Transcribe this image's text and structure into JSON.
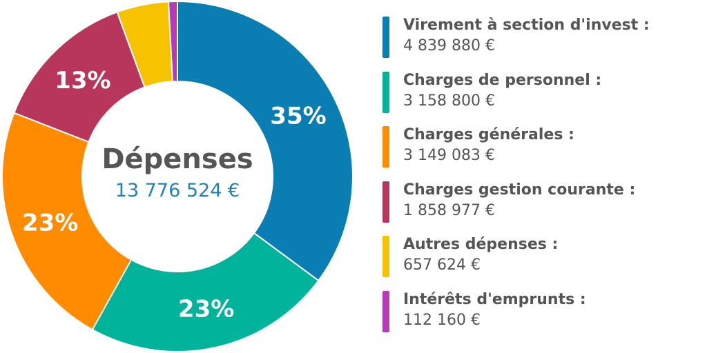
{
  "chart_data": {
    "type": "pie",
    "center": {
      "title": "Dépenses",
      "total": "13 776 524 €"
    },
    "categories": [
      "Virement à section d'invest :",
      "Charges de personnel :",
      "Charges générales :",
      "Charges gestion courante :",
      "Autres dépenses :",
      "Intérêts d'emprunts :"
    ],
    "values": [
      4839880,
      3158800,
      3149083,
      1858977,
      657624,
      112160
    ],
    "value_labels": [
      "4 839 880 €",
      "3 158 800 €",
      "3 149 083 €",
      "1 858 977 €",
      "657 624 €",
      "112 160 €"
    ],
    "slice_labels": [
      "35%",
      "23%",
      "23%",
      "13%",
      "",
      ""
    ],
    "colors": [
      "#0a7db3",
      "#00b39a",
      "#ff8c00",
      "#b8355b",
      "#f7c300",
      "#b83ab8"
    ],
    "legend_position": "right"
  }
}
